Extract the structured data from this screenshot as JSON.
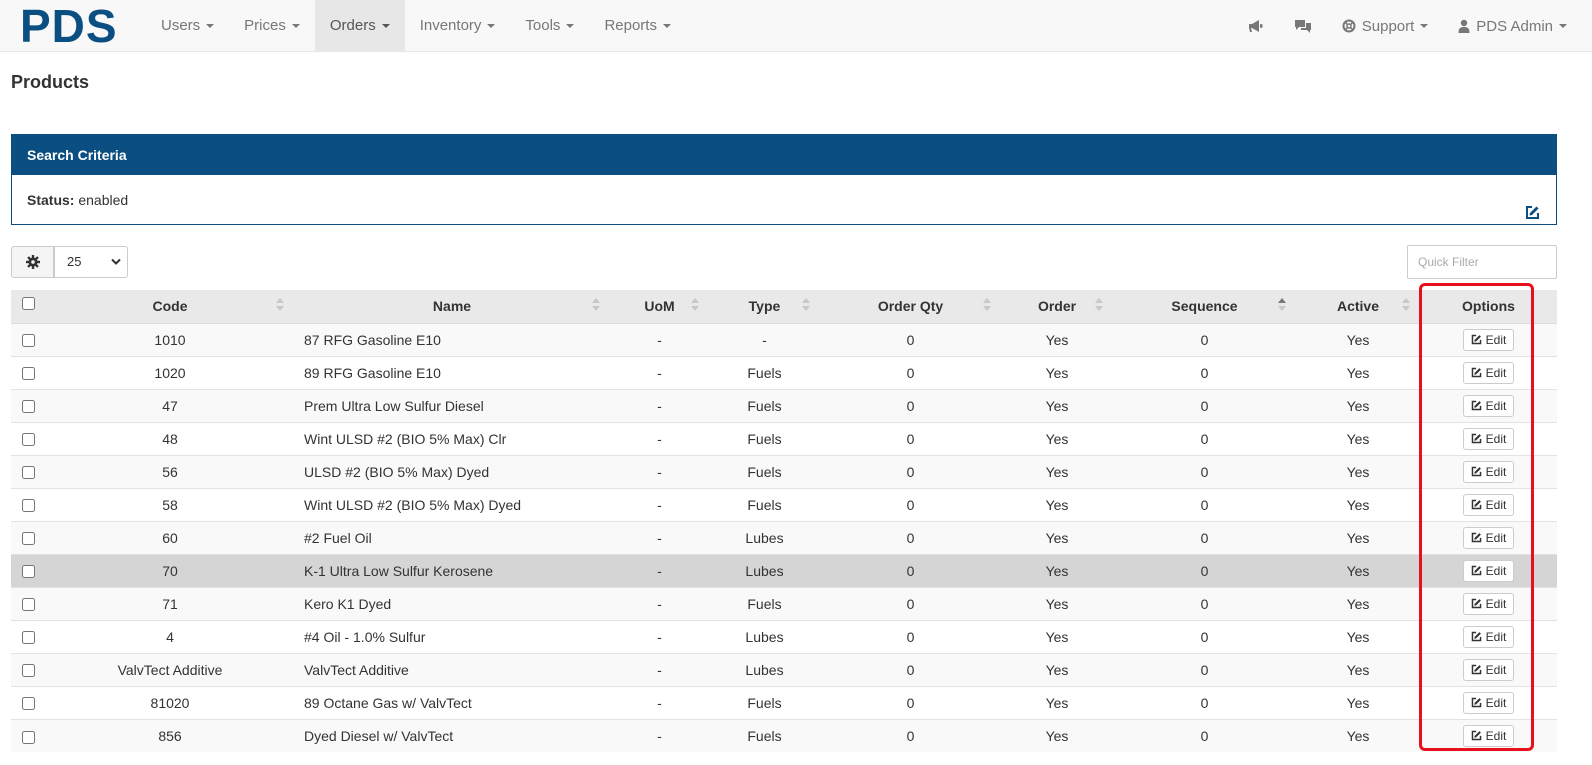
{
  "brand": "PDS",
  "nav": {
    "items": [
      {
        "label": "Users",
        "active": false
      },
      {
        "label": "Prices",
        "active": false
      },
      {
        "label": "Orders",
        "active": true
      },
      {
        "label": "Inventory",
        "active": false
      },
      {
        "label": "Tools",
        "active": false
      },
      {
        "label": "Reports",
        "active": false
      }
    ],
    "right": {
      "announce_icon": "bullhorn-icon",
      "chat_icon": "comments-icon",
      "support_label": "Support",
      "support_icon": "life-ring-icon",
      "user_label": "PDS Admin",
      "user_icon": "user-icon"
    }
  },
  "page": {
    "title": "Products"
  },
  "search_panel": {
    "heading": "Search Criteria",
    "status_label": "Status:",
    "status_value": "enabled",
    "edit_icon": "edit-icon"
  },
  "controls": {
    "settings_icon": "gear-icon",
    "page_size": "25",
    "quick_filter_placeholder": "Quick Filter"
  },
  "table": {
    "columns": [
      "Code",
      "Name",
      "UoM",
      "Type",
      "Order Qty",
      "Order",
      "Sequence",
      "Active",
      "Options"
    ],
    "sorted_column": "Sequence",
    "edit_label": "Edit",
    "rows": [
      {
        "code": "1010",
        "name": "87 RFG Gasoline E10",
        "uom": "-",
        "type": "-",
        "order_qty": "0",
        "order": "Yes",
        "sequence": "0",
        "active": "Yes"
      },
      {
        "code": "1020",
        "name": "89 RFG Gasoline E10",
        "uom": "-",
        "type": "Fuels",
        "order_qty": "0",
        "order": "Yes",
        "sequence": "0",
        "active": "Yes"
      },
      {
        "code": "47",
        "name": "Prem Ultra Low Sulfur Diesel",
        "uom": "-",
        "type": "Fuels",
        "order_qty": "0",
        "order": "Yes",
        "sequence": "0",
        "active": "Yes"
      },
      {
        "code": "48",
        "name": "Wint ULSD #2 (BIO 5% Max) Clr",
        "uom": "-",
        "type": "Fuels",
        "order_qty": "0",
        "order": "Yes",
        "sequence": "0",
        "active": "Yes"
      },
      {
        "code": "56",
        "name": "ULSD #2 (BIO 5% Max) Dyed",
        "uom": "-",
        "type": "Fuels",
        "order_qty": "0",
        "order": "Yes",
        "sequence": "0",
        "active": "Yes"
      },
      {
        "code": "58",
        "name": "Wint ULSD #2 (BIO 5% Max) Dyed",
        "uom": "-",
        "type": "Fuels",
        "order_qty": "0",
        "order": "Yes",
        "sequence": "0",
        "active": "Yes"
      },
      {
        "code": "60",
        "name": "#2 Fuel Oil",
        "uom": "-",
        "type": "Lubes",
        "order_qty": "0",
        "order": "Yes",
        "sequence": "0",
        "active": "Yes"
      },
      {
        "code": "70",
        "name": "K-1 Ultra Low Sulfur Kerosene",
        "uom": "-",
        "type": "Lubes",
        "order_qty": "0",
        "order": "Yes",
        "sequence": "0",
        "active": "Yes",
        "highlight": true
      },
      {
        "code": "71",
        "name": "Kero K1 Dyed",
        "uom": "-",
        "type": "Fuels",
        "order_qty": "0",
        "order": "Yes",
        "sequence": "0",
        "active": "Yes"
      },
      {
        "code": "4",
        "name": "#4 Oil - 1.0% Sulfur",
        "uom": "-",
        "type": "Lubes",
        "order_qty": "0",
        "order": "Yes",
        "sequence": "0",
        "active": "Yes"
      },
      {
        "code": "ValvTect Additive",
        "name": "ValvTect Additive",
        "uom": "-",
        "type": "Lubes",
        "order_qty": "0",
        "order": "Yes",
        "sequence": "0",
        "active": "Yes"
      },
      {
        "code": "81020",
        "name": "89 Octane Gas w/ ValvTect",
        "uom": "-",
        "type": "Fuels",
        "order_qty": "0",
        "order": "Yes",
        "sequence": "0",
        "active": "Yes"
      },
      {
        "code": "856",
        "name": "Dyed Diesel w/ ValvTect",
        "uom": "-",
        "type": "Fuels",
        "order_qty": "0",
        "order": "Yes",
        "sequence": "0",
        "active": "Yes"
      }
    ]
  },
  "colors": {
    "brand": "#0b4f82",
    "highlight_box": "#e8101a"
  }
}
